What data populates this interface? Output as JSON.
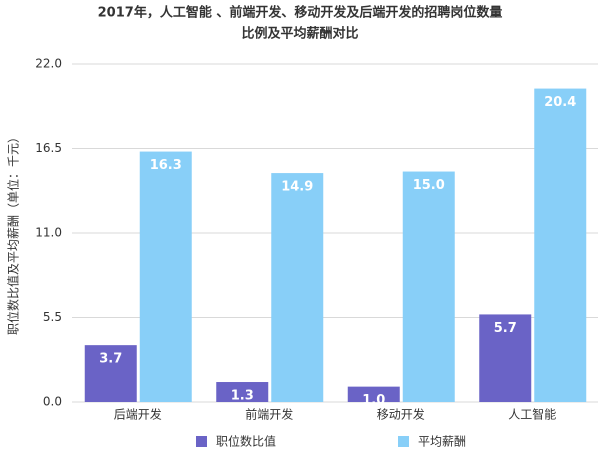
{
  "chart_data": {
    "type": "bar",
    "title": [
      "2017年，人工智能 、前端开发、移动开发及后端开发的招聘岗位数量",
      "比例及平均薪酬对比"
    ],
    "y_label": "职位数比值及平均薪酬（单位：千元）",
    "categories": [
      "后端开发",
      "前端开发",
      "移动开发",
      "人工智能"
    ],
    "series": [
      {
        "name": "职位数比值",
        "color": "#6a63c6",
        "values": [
          3.7,
          1.3,
          1.0,
          5.7
        ],
        "value_labels": [
          "3.7",
          "1.3",
          "1.0",
          "5.7"
        ]
      },
      {
        "name": "平均薪酬",
        "color": "#88cff8",
        "values": [
          16.3,
          14.9,
          15.0,
          20.4
        ],
        "value_labels": [
          "16.3",
          "14.9",
          "15.0",
          "20.4"
        ]
      }
    ],
    "ylim": [
      0,
      22
    ],
    "yticks": [
      {
        "value": 0,
        "label": "0.0"
      },
      {
        "value": 5.5,
        "label": "5.5"
      },
      {
        "value": 11,
        "label": "11.0"
      },
      {
        "value": 16.5,
        "label": "16.5"
      },
      {
        "value": 22,
        "label": "22.0"
      }
    ],
    "grid": true
  }
}
